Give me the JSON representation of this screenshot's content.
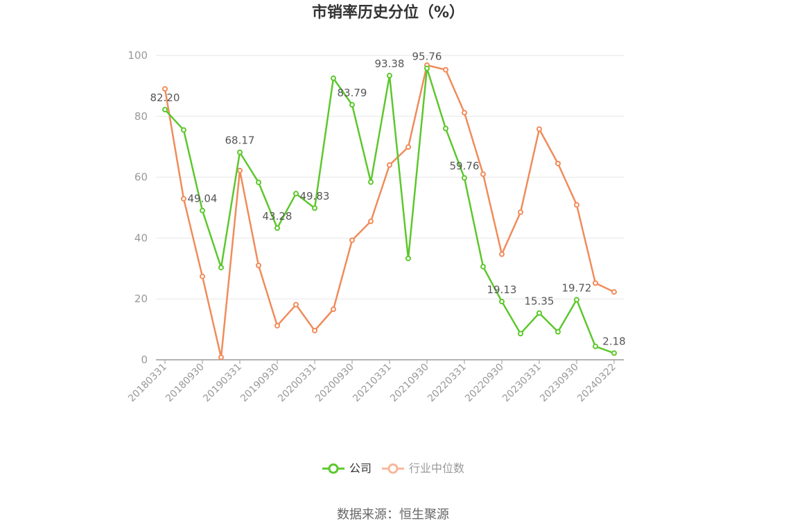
{
  "chart_data": {
    "type": "line",
    "title": "市销率历史分位（%）",
    "source": "数据来源：恒生聚源",
    "ylim": [
      0,
      100
    ],
    "yticks": [
      0,
      20,
      40,
      60,
      80,
      100
    ],
    "x": [
      "20180331",
      "20180630",
      "20180930",
      "20181231",
      "20190331",
      "20190630",
      "20190930",
      "20191231",
      "20200331",
      "20200630",
      "20200930",
      "20201231",
      "20210331",
      "20210630",
      "20210930",
      "20211231",
      "20220331",
      "20220630",
      "20220930",
      "20221231",
      "20230331",
      "20230630",
      "20230930",
      "20231231",
      "20240322"
    ],
    "x_tick_labels": [
      "20180331",
      "20180930",
      "20190331",
      "20190930",
      "20200331",
      "20200930",
      "20210331",
      "20210930",
      "20220331",
      "20220930",
      "20230331",
      "20230930",
      "20240322"
    ],
    "grid": true,
    "legend_position": "bottom",
    "series": [
      {
        "name": "公司",
        "color": "#5cc72c",
        "values": [
          82.2,
          75.5,
          49.04,
          30.3,
          68.17,
          58.3,
          43.28,
          54.6,
          49.83,
          92.5,
          83.79,
          58.4,
          93.38,
          33.3,
          95.76,
          76.0,
          59.76,
          30.6,
          19.13,
          8.6,
          15.35,
          9.2,
          19.72,
          4.4,
          2.18
        ],
        "labels": {
          "0": "82.20",
          "2": "49.04",
          "4": "68.17",
          "6": "43.28",
          "8": "49.83",
          "10": "83.79",
          "12": "93.38",
          "14": "95.76",
          "16": "59.76",
          "18": "19.13",
          "20": "15.35",
          "22": "19.72",
          "24": "2.18"
        }
      },
      {
        "name": "行业中位数",
        "color": "#f08b5a",
        "values": [
          89.0,
          52.9,
          27.4,
          0.8,
          62.2,
          31.0,
          11.2,
          18.1,
          9.6,
          16.6,
          39.3,
          45.5,
          64.0,
          69.9,
          96.8,
          95.3,
          81.2,
          61.0,
          34.7,
          48.5,
          75.8,
          64.5,
          50.9,
          25.2,
          22.3
        ]
      }
    ]
  }
}
